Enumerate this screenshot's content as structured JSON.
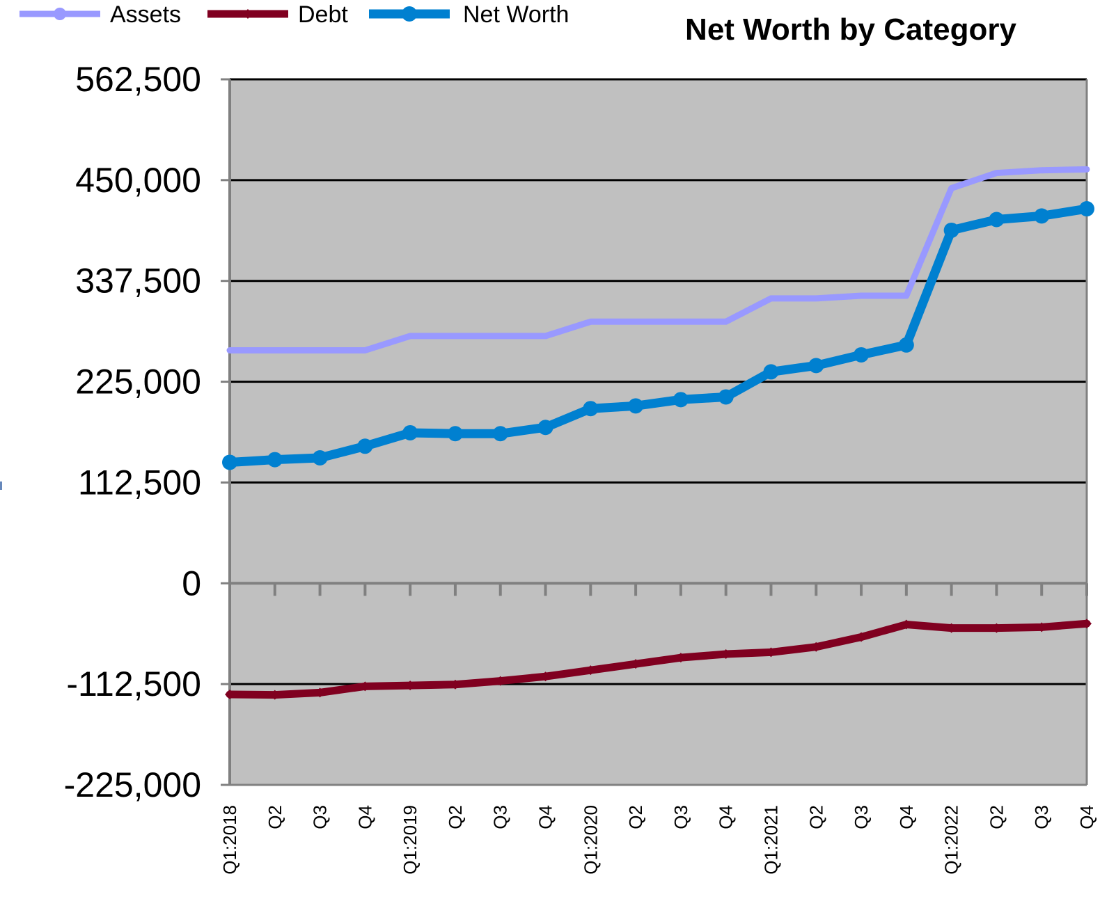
{
  "chart_data": {
    "type": "line",
    "title": "Net Worth by Category",
    "xlabel": "",
    "ylabel": "",
    "ylim": [
      -225000,
      562500
    ],
    "yticks": [
      -225000,
      -112500,
      0,
      112500,
      225000,
      337500,
      450000,
      562500
    ],
    "ytick_labels": [
      "-225,000",
      "-112,500",
      "0",
      "112,500",
      "225,000",
      "337,500",
      "450,000",
      "562,500"
    ],
    "grid": true,
    "legend_position": "top-left",
    "categories": [
      "Q1:2018",
      "Q2",
      "Q3",
      "Q4",
      "Q1:2019",
      "Q2",
      "Q3",
      "Q4",
      "Q1:2020",
      "Q2",
      "Q3",
      "Q4",
      "Q1:2021",
      "Q2",
      "Q3",
      "Q4",
      "Q1:2022",
      "Q2",
      "Q3",
      "Q4"
    ],
    "series": [
      {
        "name": "Assets",
        "color": "#9999ff",
        "marker": "circle",
        "values": [
          260000,
          260000,
          260000,
          260000,
          276000,
          276000,
          276000,
          276000,
          292000,
          292000,
          292000,
          292000,
          318000,
          318000,
          321000,
          321000,
          441000,
          458000,
          461000,
          462000
        ]
      },
      {
        "name": "Debt",
        "color": "#800020",
        "marker": "diamond",
        "values": [
          -124000,
          -124500,
          -122000,
          -115000,
          -114000,
          -113000,
          -109000,
          -104000,
          -97000,
          -90000,
          -83000,
          -79000,
          -77000,
          -71000,
          -60000,
          -46000,
          -50000,
          -50000,
          -49000,
          -45000
        ]
      },
      {
        "name": "Net Worth",
        "color": "#0080d0",
        "marker": "circle",
        "values": [
          135000,
          138000,
          140000,
          153000,
          168000,
          167000,
          167000,
          174000,
          195000,
          198000,
          205000,
          208000,
          236000,
          243000,
          255000,
          266000,
          394000,
          406000,
          410000,
          418000
        ]
      }
    ]
  }
}
